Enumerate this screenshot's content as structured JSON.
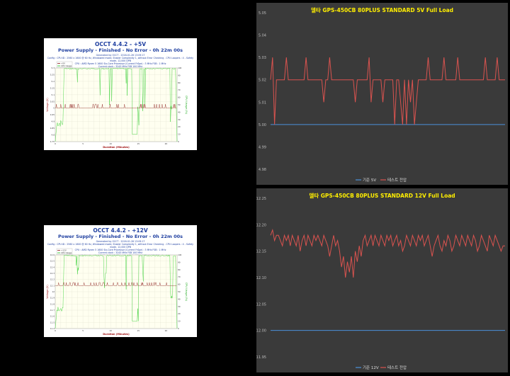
{
  "occt": [
    {
      "title": "OCCT 4.4.2 - +5V",
      "subtitle": "Power Supply - Finished - No Error - 0h 22m 00s",
      "info": [
        "Generated by OCCT - 2018-01-26 13:09:17",
        "Config : CPU:ID : 2560 x 1600 @ 60 Hz, Windowed mode, Shader Complexity 1, without Error Checking - CPU Loopers : 4 - Safety mode, 12,000 DPB",
        "CPU : AMD Ryzen 5 1600 Six-Core Processor (Current FrSpe) : 3 MHz FSB : 1 MHz",
        "Current clock : 3243 MHz FSB 100 MHz",
        "Motherboard : ASUSTeK COMPUTER INC. / ROG STRIX X470-F GAMING"
      ],
      "legend": [
        "+5V",
        "CPU Usage"
      ],
      "xlabel": "Duration (Minutes)",
      "ylabel": "Voltage (V)",
      "ylabel2": "CPU Usage (%)",
      "chart_data": {
        "type": "line",
        "x_range": [
          0,
          22
        ],
        "x_ticks": [
          "0",
          "1",
          "2",
          "3",
          "4",
          "5",
          "6",
          "7",
          "8",
          "9",
          "10",
          "11",
          "12",
          "13",
          "14",
          "15",
          "16",
          "17",
          "18",
          "19",
          "20",
          "21",
          "22"
        ],
        "y_ticks_left": [
          "5.3",
          "5.25",
          "5.2",
          "5.15",
          "5.1",
          "5.05",
          "5",
          "4.95",
          "4.9",
          "4.85",
          "4.8",
          "4.75"
        ],
        "y_ticks_right": [
          "100",
          "90",
          "80",
          "70",
          "60",
          "50",
          "40",
          "30",
          "20",
          "10",
          "0"
        ],
        "series": [
          {
            "name": "+5V",
            "color": "#8b1a1a",
            "baseline": 5.0,
            "spikes_to": 5.03,
            "axis": "left"
          },
          {
            "name": "CPU Usage",
            "color": "#22cc22",
            "typical": 100,
            "dips": [
              [
                4,
                70
              ],
              [
                8,
                55
              ],
              [
                10,
                30
              ],
              [
                13,
                60
              ],
              [
                15,
                20
              ],
              [
                16,
                40
              ],
              [
                21,
                20
              ]
            ],
            "axis": "right"
          }
        ]
      }
    },
    {
      "title": "OCCT 4.4.2 - +12V",
      "subtitle": "Power Supply - Finished - No Error - 0h 22m 00s",
      "info": [
        "Generated by OCCT - 2018-01-26 13:09:17",
        "Config : CPU:ID : 2560 x 1600 @ 60 Hz, Windowed mode, Shader Complexity 1, without Error Checking - CPU Loopers : 4 - Safety mode, 12,000 DPB",
        "CPU : AMD Ryzen 5 1600 Six-Core Processor (Current FrSpe) : 3 MHz FSB : 1 MHz",
        "Current clock : 3243 MHz FSB 100 MHz",
        "Motherboard : ASUSTeK COMPUTER INC. / ROG STRIX X470-F GAMING"
      ],
      "legend": [
        "+12V",
        "CPU Usage"
      ],
      "xlabel": "Duration (Minutes)",
      "ylabel": "Voltage (V)",
      "ylabel2": "CPU Usage (%)",
      "chart_data": {
        "type": "line",
        "x_range": [
          0,
          22
        ],
        "x_ticks": [
          "0",
          "1",
          "2",
          "3",
          "4",
          "5",
          "6",
          "7",
          "8",
          "9",
          "10",
          "11",
          "12",
          "13",
          "14",
          "15",
          "16",
          "17",
          "18",
          "19",
          "20",
          "21",
          "22"
        ],
        "y_ticks_left": [
          "12.6",
          "12.5",
          "12.4",
          "12.3",
          "12.2",
          "12.1",
          "12",
          "11.9",
          "11.8",
          "11.7",
          "11.6",
          "11.5",
          "11.4"
        ],
        "y_ticks_right": [
          "100",
          "90",
          "80",
          "70",
          "60",
          "50",
          "40",
          "30",
          "20",
          "10",
          "0"
        ],
        "series": [
          {
            "name": "+12V",
            "color": "#8b1a1a",
            "baseline": 12.1,
            "spikes_to": 12.15,
            "axis": "left"
          },
          {
            "name": "CPU Usage",
            "color": "#22cc22",
            "typical": 100,
            "dips": [
              [
                4,
                60
              ],
              [
                9,
                50
              ],
              [
                13,
                40
              ],
              [
                15,
                10
              ],
              [
                16,
                55
              ],
              [
                21,
                20
              ]
            ],
            "axis": "right"
          }
        ]
      }
    }
  ],
  "chart_data": [
    {
      "type": "line",
      "title": "델타 GPS-450CB 80PLUS STANDARD 5V Full Load",
      "ylim": [
        4.98,
        5.05
      ],
      "y_ticks": [
        "5.05",
        "5.04",
        "5.03",
        "5.02",
        "5.01",
        "5.00",
        "4.99",
        "4.98"
      ],
      "series": [
        {
          "name": "기준 5V",
          "color": "#4a90d9",
          "values": [
            5.0
          ]
        },
        {
          "name": "테스트 전압",
          "color": "#d9534f",
          "values": [
            5.02,
            5.03,
            5.0,
            5.02,
            5.02,
            5.02,
            5.02,
            5.02,
            5.03,
            5.02,
            5.02,
            5.02,
            5.02,
            5.02,
            5.02,
            5.02,
            5.02,
            5.02,
            5.03,
            5.02,
            5.02,
            5.02,
            5.02,
            5.02,
            5.02,
            5.02,
            5.02,
            5.01,
            5.02,
            5.02,
            5.03,
            5.02,
            5.02,
            5.02,
            5.02,
            5.02,
            5.02,
            5.02,
            5.02,
            5.02,
            5.02,
            5.02,
            5.02,
            5.01,
            5.02,
            5.02,
            5.02,
            5.02,
            5.02,
            5.02,
            5.03,
            5.01,
            5.02,
            5.02,
            5.02,
            5.02,
            5.02,
            5.01,
            5.02,
            5.02,
            5.02,
            5.02,
            5.02,
            5.0,
            5.02,
            5.02,
            5.01,
            5.0,
            5.02,
            5.0,
            5.02,
            5.01,
            5.02,
            5.0,
            5.01,
            5.02,
            5.02,
            5.02,
            5.02,
            5.02,
            5.03,
            5.02,
            5.02,
            5.02,
            5.02,
            5.02,
            5.02,
            5.02,
            5.03,
            5.02,
            5.02,
            5.02,
            5.02,
            5.02,
            5.02,
            5.03,
            5.02,
            5.02,
            5.02,
            5.02,
            5.02,
            5.02,
            5.02,
            5.02,
            5.02,
            5.02,
            5.02,
            5.02,
            5.02,
            5.03,
            5.02,
            5.02,
            5.02,
            5.02,
            5.02,
            5.03,
            5.02,
            5.02,
            5.02,
            5.02
          ]
        }
      ]
    },
    {
      "type": "line",
      "title": "델타 GPS-450CB 80PLUS STANDARD 12V Full Load",
      "ylim": [
        11.95,
        12.25
      ],
      "y_ticks": [
        "12.25",
        "12.20",
        "12.15",
        "12.10",
        "12.05",
        "12.00",
        "11.95"
      ],
      "series": [
        {
          "name": "기준 12V",
          "color": "#4a90d9",
          "values": [
            12.0
          ]
        },
        {
          "name": "테스트 전압",
          "color": "#d9534f",
          "values": [
            12.18,
            12.19,
            12.17,
            12.18,
            12.18,
            12.17,
            12.16,
            12.18,
            12.17,
            12.18,
            12.16,
            12.18,
            12.17,
            12.16,
            12.18,
            12.15,
            12.17,
            12.18,
            12.16,
            12.18,
            12.17,
            12.16,
            12.18,
            12.17,
            12.18,
            12.17,
            12.16,
            12.18,
            12.17,
            12.16,
            12.14,
            12.16,
            12.18,
            12.16,
            12.17,
            12.15,
            12.12,
            12.14,
            12.1,
            12.13,
            12.11,
            12.14,
            12.1,
            12.15,
            12.13,
            12.16,
            12.14,
            12.17,
            12.18,
            12.16,
            12.17,
            12.18,
            12.16,
            12.18,
            12.17,
            12.16,
            12.18,
            12.17,
            12.16,
            12.18,
            12.17,
            12.18,
            12.16,
            12.17,
            12.18,
            12.16,
            12.17,
            12.15,
            12.16,
            12.18,
            12.17,
            12.16,
            12.18,
            12.17,
            12.16,
            12.18,
            12.17,
            12.18,
            12.16,
            12.17,
            12.18,
            12.16,
            12.14,
            12.16,
            12.17,
            12.18,
            12.16,
            12.15,
            12.17,
            12.16,
            12.18,
            12.17,
            12.15,
            12.16,
            12.18,
            12.17,
            12.16,
            12.18,
            12.17,
            12.16,
            12.18,
            12.17,
            12.16,
            12.18,
            12.17,
            12.15,
            12.16,
            12.18,
            12.17,
            12.16,
            12.15,
            12.18,
            12.17,
            12.16,
            12.18,
            12.17,
            12.16,
            12.15,
            12.16,
            12.16
          ]
        }
      ]
    }
  ]
}
